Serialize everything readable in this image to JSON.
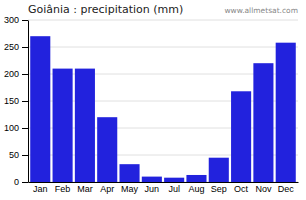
{
  "chart_data": {
    "type": "bar",
    "title": "Goiânia : precipitation (mm)",
    "categories": [
      "Jan",
      "Feb",
      "Mar",
      "Apr",
      "May",
      "Jun",
      "Jul",
      "Aug",
      "Sep",
      "Oct",
      "Nov",
      "Dec"
    ],
    "values": [
      270,
      210,
      210,
      120,
      33,
      10,
      8,
      13,
      45,
      168,
      220,
      258
    ],
    "color": "#2222dd",
    "ylim": [
      0,
      300
    ],
    "yticks": [
      0,
      50,
      100,
      150,
      200,
      250,
      300
    ],
    "grid": true,
    "annotations": [
      "www.allmetsat.com"
    ]
  }
}
